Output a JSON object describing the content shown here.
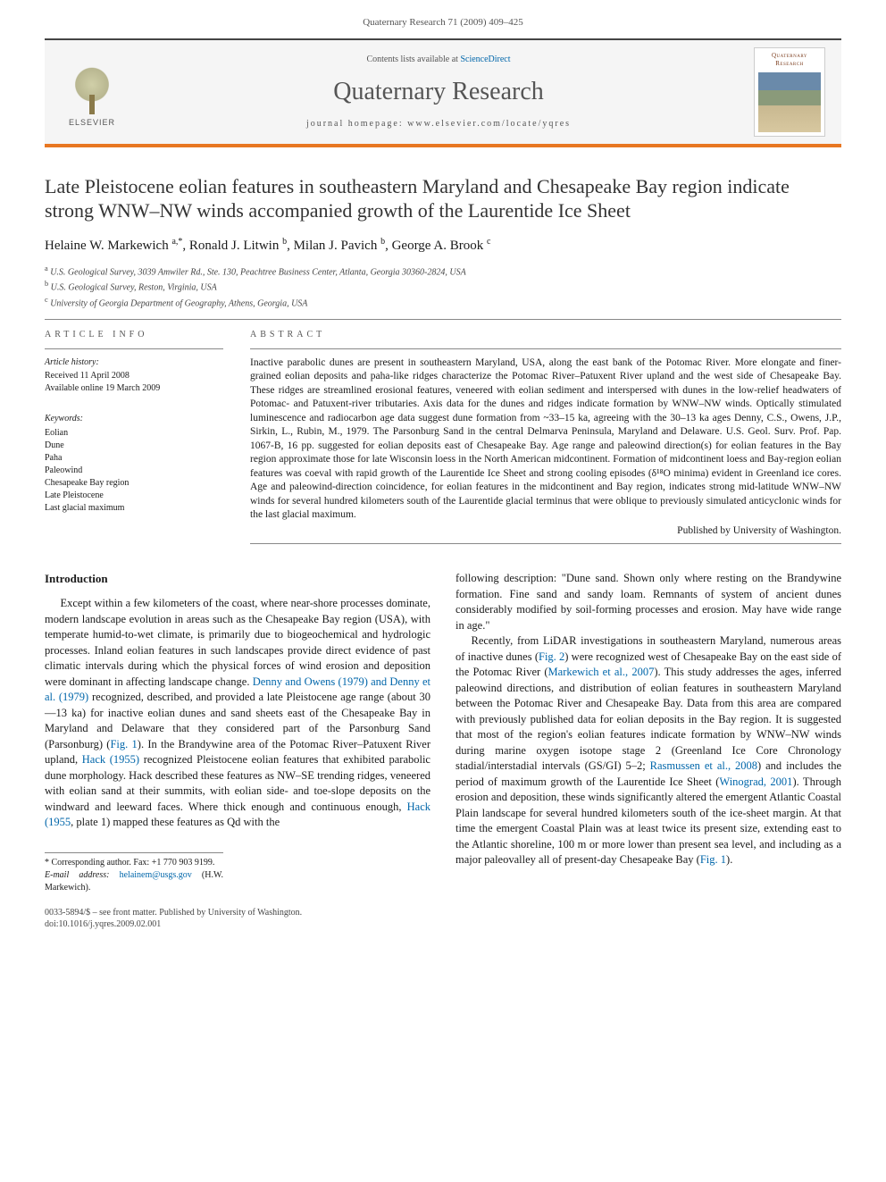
{
  "page_header": "Quaternary Research 71 (2009) 409–425",
  "banner": {
    "publisher_label": "ELSEVIER",
    "contents_prefix": "Contents lists available at ",
    "contents_link": "ScienceDirect",
    "journal_title": "Quaternary Research",
    "homepage_prefix": "journal homepage: ",
    "homepage_url": "www.elsevier.com/locate/yqres",
    "cover_title": "Quaternary Research"
  },
  "article": {
    "title": "Late Pleistocene eolian features in southeastern Maryland and Chesapeake Bay region indicate strong WNW–NW winds accompanied growth of the Laurentide Ice Sheet",
    "authors_html": "Helaine W. Markewich <sup>a,</sup>",
    "authors": [
      {
        "name": "Helaine W. Markewich",
        "sup": "a,*"
      },
      {
        "name": "Ronald J. Litwin",
        "sup": "b"
      },
      {
        "name": "Milan J. Pavich",
        "sup": "b"
      },
      {
        "name": "George A. Brook",
        "sup": "c"
      }
    ],
    "affiliations": [
      {
        "sup": "a",
        "text": "U.S. Geological Survey, 3039 Amwiler Rd., Ste. 130, Peachtree Business Center, Atlanta, Georgia 30360-2824, USA"
      },
      {
        "sup": "b",
        "text": "U.S. Geological Survey, Reston, Virginia, USA"
      },
      {
        "sup": "c",
        "text": "University of Georgia Department of Geography, Athens, Georgia, USA"
      }
    ]
  },
  "info": {
    "heading": "article info",
    "history_heading": "Article history:",
    "received": "Received 11 April 2008",
    "online": "Available online 19 March 2009",
    "keywords_heading": "Keywords:",
    "keywords": [
      "Eolian",
      "Dune",
      "Paha",
      "Paleowind",
      "Chesapeake Bay region",
      "Late Pleistocene",
      "Last glacial maximum"
    ]
  },
  "abstract": {
    "heading": "abstract",
    "body": "Inactive parabolic dunes are present in southeastern Maryland, USA, along the east bank of the Potomac River. More elongate and finer-grained eolian deposits and paha-like ridges characterize the Potomac River–Patuxent River upland and the west side of Chesapeake Bay. These ridges are streamlined erosional features, veneered with eolian sediment and interspersed with dunes in the low-relief headwaters of Potomac- and Patuxent-river tributaries. Axis data for the dunes and ridges indicate formation by WNW–NW winds. Optically stimulated luminescence and radiocarbon age data suggest dune formation from ~33–15 ka, agreeing with the 30–13 ka ages Denny, C.S., Owens, J.P., Sirkin, L., Rubin, M., 1979. The Parsonburg Sand in the central Delmarva Peninsula, Maryland and Delaware. U.S. Geol. Surv. Prof. Pap. 1067-B, 16 pp. suggested for eolian deposits east of Chesapeake Bay. Age range and paleowind direction(s) for eolian features in the Bay region approximate those for late Wisconsin loess in the North American midcontinent. Formation of midcontinent loess and Bay-region eolian features was coeval with rapid growth of the Laurentide Ice Sheet and strong cooling episodes (δ¹⁸O minima) evident in Greenland ice cores. Age and paleowind-direction coincidence, for eolian features in the midcontinent and Bay region, indicates strong mid-latitude WNW–NW winds for several hundred kilometers south of the Laurentide glacial terminus that were oblique to previously simulated anticyclonic winds for the last glacial maximum.",
    "published_by": "Published by University of Washington."
  },
  "intro": {
    "heading": "Introduction",
    "p1_pre": "Except within a few kilometers of the coast, where near-shore processes dominate, modern landscape evolution in areas such as the Chesapeake Bay region (USA), with temperate humid-to-wet climate, is primarily due to biogeochemical and hydrologic processes. Inland eolian features in such landscapes provide direct evidence of past climatic intervals during which the physical forces of wind erosion and deposition were dominant in affecting landscape change. ",
    "p1_link1": "Denny and Owens (1979) and Denny et al. (1979)",
    "p1_mid1": " recognized, described, and provided a late Pleistocene age range (about 30—13 ka) for inactive eolian dunes and sand sheets east of the Chesapeake Bay in Maryland and Delaware that they considered part of the Parsonburg Sand (Parsonburg) (",
    "p1_fig1": "Fig. 1",
    "p1_mid2": "). In the Brandywine area of the Potomac River–Patuxent River upland, ",
    "p1_link2": "Hack (1955)",
    "p1_mid3": " recognized Pleistocene eolian features that exhibited parabolic dune morphology. Hack described these features as NW–SE trending ridges, veneered with eolian sand at their summits, with eolian side- and toe-slope deposits on the windward and leeward faces. Where thick enough and continuous enough, ",
    "p1_link3": "Hack (1955",
    "p1_post": ", plate 1) mapped these features as Qd with the",
    "p2": "following description: \"Dune sand. Shown only where resting on the Brandywine formation. Fine sand and sandy loam. Remnants of system of ancient dunes considerably modified by soil-forming processes and erosion. May have wide range in age.\"",
    "p3_pre": "Recently, from LiDAR investigations in southeastern Maryland, numerous areas of inactive dunes (",
    "p3_fig2": "Fig. 2",
    "p3_mid1": ") were recognized west of Chesapeake Bay on the east side of the Potomac River (",
    "p3_link1": "Markewich et al., 2007",
    "p3_mid2": "). This study addresses the ages, inferred paleowind directions, and distribution of eolian features in southeastern Maryland between the Potomac River and Chesapeake Bay. Data from this area are compared with previously published data for eolian deposits in the Bay region. It is suggested that most of the region's eolian features indicate formation by WNW–NW winds during marine oxygen isotope stage 2 (Greenland Ice Core Chronology stadial/interstadial intervals (GS/GI) 5–2; ",
    "p3_link2": "Rasmussen et al., 2008",
    "p3_mid3": ") and includes the period of maximum growth of the Laurentide Ice Sheet (",
    "p3_link3": "Winograd, 2001",
    "p3_mid4": "). Through erosion and deposition, these winds significantly altered the emergent Atlantic Coastal Plain landscape for several hundred kilometers south of the ice-sheet margin. At that time the emergent Coastal Plain was at least twice its present size, extending east to the Atlantic shoreline, 100 m or more lower than present sea level, and including as a major paleovalley all of present-day Chesapeake Bay (",
    "p3_fig1": "Fig. 1",
    "p3_post": ")."
  },
  "footnotes": {
    "corr": "* Corresponding author. Fax: +1 770 903 9199.",
    "email_label": "E-mail address: ",
    "email": "helainem@usgs.gov",
    "email_person": " (H.W. Markewich)."
  },
  "bottom": {
    "line1": "0033-5894/$ – see front matter. Published by University of Washington.",
    "line2": "doi:10.1016/j.yqres.2009.02.001"
  },
  "colors": {
    "accent": "#e87722",
    "link": "#0066aa",
    "text": "#1a1a1a",
    "muted": "#555"
  }
}
